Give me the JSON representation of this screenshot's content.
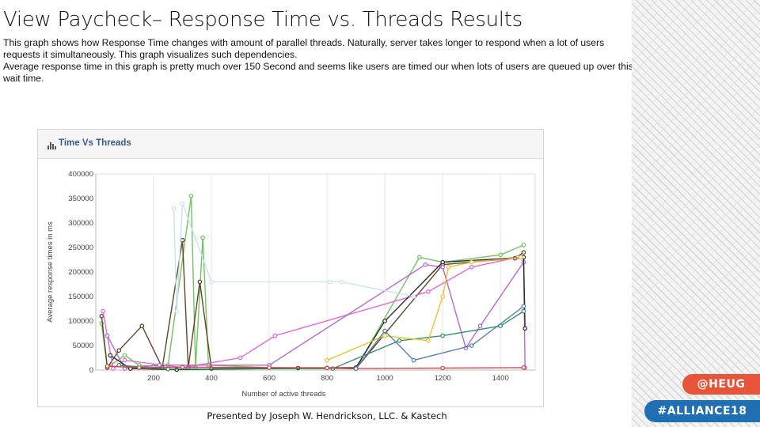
{
  "slide": {
    "title": "View Paycheck– Response Time vs. Threads Results",
    "paragraphs": [
      "This graph shows how Response Time changes with amount of parallel threads. Naturally, server takes longer to respond when a lot of users requests it simultaneously. This graph visualizes such dependencies.",
      "Average response time in this graph is pretty much over 150 Second and seems like users are timed our when lots of users are queued up over this wait time."
    ],
    "footer": "Presented by Joseph W. Hendrickson, LLC. & Kastech"
  },
  "badges": {
    "heug": "@HEUG",
    "alliance": "#ALLIANCE18"
  },
  "chart_data": {
    "type": "line",
    "title": "Time Vs Threads",
    "xlabel": "Number of active threads",
    "ylabel": "Average response times in ms",
    "xlim": [
      0,
      1520
    ],
    "ylim": [
      0,
      400000
    ],
    "xticks": [
      200,
      400,
      600,
      800,
      1000,
      1200,
      1400
    ],
    "yticks": [
      0,
      50000,
      100000,
      150000,
      200000,
      250000,
      300000,
      350000,
      400000
    ],
    "grid": "vertical",
    "series": [
      {
        "color": "#6ac05a",
        "points": [
          [
            20,
            95000
          ],
          [
            40,
            5000
          ],
          [
            100,
            30000
          ],
          [
            150,
            10000
          ],
          [
            200,
            8000
          ],
          [
            250,
            10000
          ],
          [
            330,
            355000
          ],
          [
            345,
            5000
          ],
          [
            370,
            270000
          ],
          [
            390,
            10000
          ],
          [
            600,
            5000
          ],
          [
            800,
            5000
          ],
          [
            900,
            3000
          ],
          [
            1120,
            230000
          ],
          [
            1200,
            220000
          ],
          [
            1400,
            235000
          ],
          [
            1480,
            255000
          ]
        ]
      },
      {
        "color": "#5a3a1a",
        "points": [
          [
            20,
            110000
          ],
          [
            40,
            5000
          ],
          [
            80,
            40000
          ],
          [
            160,
            90000
          ],
          [
            230,
            5000
          ],
          [
            300,
            265000
          ],
          [
            320,
            5000
          ],
          [
            360,
            180000
          ],
          [
            400,
            3000
          ],
          [
            700,
            4000
          ],
          [
            900,
            3000
          ],
          [
            1200,
            215000
          ],
          [
            1450,
            228000
          ],
          [
            1480,
            240000
          ]
        ]
      },
      {
        "color": "#e060e0",
        "points": [
          [
            25,
            120000
          ],
          [
            60,
            3000
          ],
          [
            100,
            20000
          ],
          [
            300,
            5000
          ],
          [
            500,
            25000
          ],
          [
            620,
            70000
          ],
          [
            1150,
            160000
          ],
          [
            1300,
            210000
          ],
          [
            1460,
            230000
          ]
        ]
      },
      {
        "color": "#b060d0",
        "points": [
          [
            40,
            70000
          ],
          [
            100,
            3000
          ],
          [
            220,
            10000
          ],
          [
            600,
            10000
          ],
          [
            1140,
            215000
          ],
          [
            1200,
            210000
          ],
          [
            1280,
            45000
          ],
          [
            1330,
            90000
          ],
          [
            1480,
            220000
          ],
          [
            1485,
            5000
          ]
        ]
      },
      {
        "color": "#222222",
        "points": [
          [
            50,
            30000
          ],
          [
            120,
            3000
          ],
          [
            280,
            1000
          ],
          [
            900,
            5000
          ],
          [
            1000,
            100000
          ],
          [
            1200,
            220000
          ],
          [
            1480,
            230000
          ],
          [
            1485,
            85000
          ]
        ]
      },
      {
        "color": "#2a8a60",
        "points": [
          [
            80,
            10000
          ],
          [
            250,
            2000
          ],
          [
            820,
            3000
          ],
          [
            1050,
            60000
          ],
          [
            1200,
            70000
          ],
          [
            1400,
            90000
          ],
          [
            1480,
            120000
          ]
        ]
      },
      {
        "color": "#d04040",
        "points": [
          [
            40,
            8000
          ],
          [
            150,
            5000
          ],
          [
            300,
            6000
          ],
          [
            600,
            5000
          ],
          [
            800,
            4000
          ],
          [
            900,
            3000
          ],
          [
            1200,
            4000
          ],
          [
            1480,
            5000
          ]
        ]
      },
      {
        "color": "#e8c020",
        "points": [
          [
            800,
            20000
          ],
          [
            1000,
            70000
          ],
          [
            1150,
            60000
          ],
          [
            1200,
            150000
          ],
          [
            1220,
            210000
          ],
          [
            1300,
            220000
          ],
          [
            1470,
            230000
          ]
        ]
      },
      {
        "color": "#4a7ab0",
        "points": [
          [
            900,
            3000
          ],
          [
            1000,
            80000
          ],
          [
            1100,
            20000
          ],
          [
            1300,
            50000
          ],
          [
            1480,
            130000
          ]
        ]
      },
      {
        "color": "#c8e0f0",
        "points": [
          [
            270,
            330000
          ],
          [
            280,
            120000
          ],
          [
            300,
            340000
          ],
          [
            400,
            180000
          ],
          [
            810,
            180000
          ],
          [
            850,
            180000
          ],
          [
            1100,
            150000
          ]
        ]
      }
    ]
  }
}
